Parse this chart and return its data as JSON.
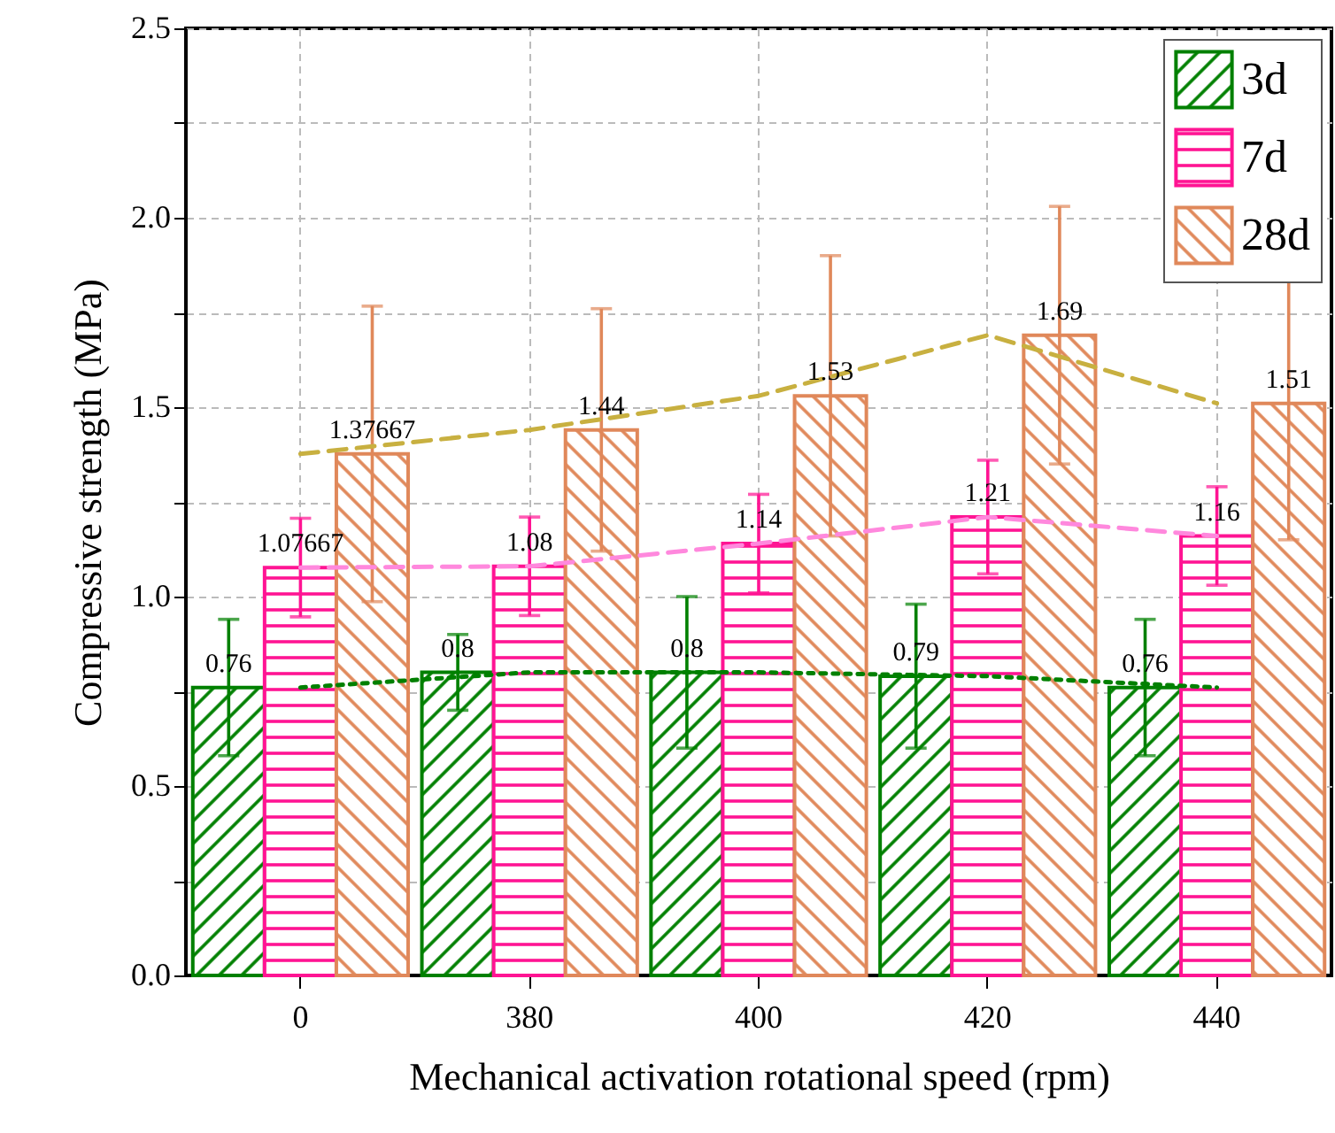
{
  "chart_data": {
    "type": "bar",
    "xlabel": "Mechanical activation rotational speed (rpm)",
    "ylabel": "Compressive strength (MPa)",
    "categories": [
      "0",
      "380",
      "400",
      "420",
      "440"
    ],
    "series": [
      {
        "name": "3d",
        "color": "#008000",
        "values": [
          0.76,
          0.8,
          0.8,
          0.79,
          0.76
        ],
        "errors": [
          0.18,
          0.1,
          0.2,
          0.19,
          0.18
        ],
        "value_labels": [
          "0.76",
          "0.8",
          "0.8",
          "0.79",
          "0.76"
        ]
      },
      {
        "name": "7d",
        "color": "#ff1493",
        "values": [
          1.07667,
          1.08,
          1.14,
          1.21,
          1.16
        ],
        "errors": [
          0.13,
          0.13,
          0.13,
          0.15,
          0.13
        ],
        "value_labels": [
          "1.07667",
          "1.08",
          "1.14",
          "1.21",
          "1.16"
        ]
      },
      {
        "name": "28d",
        "color": "#e0885a",
        "values": [
          1.37667,
          1.44,
          1.53,
          1.69,
          1.51
        ],
        "errors": [
          0.39,
          0.32,
          0.37,
          0.34,
          0.36
        ],
        "value_labels": [
          "1.37667",
          "1.44",
          "1.53",
          "1.69",
          "1.51"
        ]
      },
      {
        "type": "line",
        "color": "#008000",
        "line_style": "dotted",
        "values": [
          0.76,
          0.8,
          0.8,
          0.79,
          0.76
        ]
      },
      {
        "type": "line",
        "color": "#ff88dd",
        "line_style": "dashed",
        "values": [
          1.07667,
          1.08,
          1.14,
          1.21,
          1.16
        ]
      },
      {
        "type": "line",
        "color": "#c8b040",
        "line_style": "dashed",
        "values": [
          1.37667,
          1.44,
          1.53,
          1.69,
          1.51
        ]
      }
    ],
    "ylim": [
      0,
      2.5
    ],
    "yticks": [
      {
        "value": 0,
        "label": "0.0"
      },
      {
        "value": 0.25,
        "label": null
      },
      {
        "value": 0.5,
        "label": "0.5"
      },
      {
        "value": 0.75,
        "label": null
      },
      {
        "value": 1,
        "label": "1.0"
      },
      {
        "value": 1.25,
        "label": null
      },
      {
        "value": 1.5,
        "label": "1.5"
      },
      {
        "value": 1.75,
        "label": null
      },
      {
        "value": 2,
        "label": "2.0"
      },
      {
        "value": 2.25,
        "label": null
      },
      {
        "value": 2.5,
        "label": "2.5"
      }
    ],
    "grid": true,
    "legend": "top right"
  }
}
